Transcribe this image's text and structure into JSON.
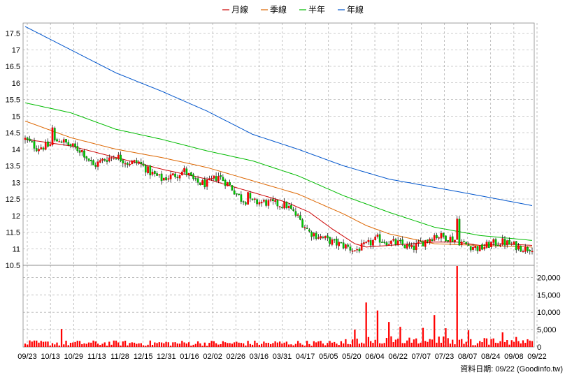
{
  "chart_data": {
    "type": "candlestick",
    "legend": [
      {
        "name": "月線",
        "color": "#cc0000"
      },
      {
        "name": "季線",
        "color": "#dd6600"
      },
      {
        "name": "半年",
        "color": "#00bb00"
      },
      {
        "name": "年線",
        "color": "#0055cc"
      }
    ],
    "price_axis": {
      "ylim": [
        10.5,
        17.7
      ],
      "ticks": [
        10.5,
        11,
        11.5,
        12,
        12.5,
        13,
        13.5,
        14,
        14.5,
        15,
        15.5,
        16,
        16.5,
        17,
        17.5
      ]
    },
    "volume_axis": {
      "ylim": [
        0,
        23000
      ],
      "ticks": [
        "0",
        "5,000",
        "10,000",
        "15,000",
        "20,000"
      ],
      "tick_values": [
        0,
        5000,
        10000,
        15000,
        20000
      ]
    },
    "x_labels": [
      "09/23",
      "10/13",
      "10/29",
      "11/13",
      "11/28",
      "12/15",
      "12/31",
      "01/16",
      "02/02",
      "02/26",
      "03/16",
      "03/31",
      "04/17",
      "05/05",
      "05/20",
      "06/04",
      "06/22",
      "07/07",
      "07/23",
      "08/07",
      "08/24",
      "09/08",
      "09/22"
    ],
    "grid": true,
    "source_note": "資料日期: 09/22 (Goodinfo.tw)",
    "price_anchors": [
      [
        0,
        14.3
      ],
      [
        5,
        14.05
      ],
      [
        10,
        14.1
      ],
      [
        15,
        14.3
      ],
      [
        20,
        14.1
      ],
      [
        25,
        13.95
      ],
      [
        30,
        13.5
      ],
      [
        35,
        13.7
      ],
      [
        40,
        13.8
      ],
      [
        45,
        13.6
      ],
      [
        50,
        13.6
      ],
      [
        55,
        13.3
      ],
      [
        60,
        13.1
      ],
      [
        65,
        13.2
      ],
      [
        70,
        13.35
      ],
      [
        75,
        13.0
      ],
      [
        80,
        12.95
      ],
      [
        85,
        13.2
      ],
      [
        90,
        12.9
      ],
      [
        95,
        12.5
      ],
      [
        100,
        12.4
      ],
      [
        105,
        12.4
      ],
      [
        110,
        12.35
      ],
      [
        115,
        12.3
      ],
      [
        120,
        11.95
      ],
      [
        125,
        11.5
      ],
      [
        130,
        11.35
      ],
      [
        135,
        11.2
      ],
      [
        140,
        11.1
      ],
      [
        145,
        10.95
      ],
      [
        150,
        11.1
      ],
      [
        155,
        11.3
      ],
      [
        160,
        11.2
      ],
      [
        165,
        11.15
      ],
      [
        170,
        11.0
      ],
      [
        175,
        11.2
      ],
      [
        180,
        11.4
      ],
      [
        185,
        11.35
      ],
      [
        190,
        11.25
      ],
      [
        195,
        11.1
      ],
      [
        200,
        11.0
      ],
      [
        205,
        11.15
      ],
      [
        210,
        11.2
      ],
      [
        215,
        11.1
      ],
      [
        220,
        11.0
      ],
      [
        223,
        11.05
      ]
    ],
    "moving_averages": {
      "月線": [
        [
          0,
          14.3
        ],
        [
          20,
          14.1
        ],
        [
          40,
          13.75
        ],
        [
          60,
          13.4
        ],
        [
          80,
          13.1
        ],
        [
          100,
          12.7
        ],
        [
          115,
          12.4
        ],
        [
          125,
          12.1
        ],
        [
          135,
          11.6
        ],
        [
          145,
          11.15
        ],
        [
          150,
          11.05
        ],
        [
          160,
          11.1
        ],
        [
          170,
          11.15
        ],
        [
          180,
          11.2
        ],
        [
          190,
          11.2
        ],
        [
          200,
          11.1
        ],
        [
          210,
          11.15
        ],
        [
          223,
          11.1
        ]
      ],
      "季線": [
        [
          0,
          14.85
        ],
        [
          20,
          14.35
        ],
        [
          40,
          14.0
        ],
        [
          60,
          13.75
        ],
        [
          80,
          13.45
        ],
        [
          100,
          13.05
        ],
        [
          120,
          12.65
        ],
        [
          140,
          12.05
        ],
        [
          150,
          11.7
        ],
        [
          160,
          11.45
        ],
        [
          170,
          11.3
        ],
        [
          180,
          11.15
        ],
        [
          200,
          11.1
        ],
        [
          223,
          11.05
        ]
      ],
      "半年": [
        [
          0,
          15.4
        ],
        [
          20,
          15.1
        ],
        [
          40,
          14.6
        ],
        [
          60,
          14.3
        ],
        [
          80,
          13.95
        ],
        [
          100,
          13.65
        ],
        [
          120,
          13.2
        ],
        [
          140,
          12.6
        ],
        [
          160,
          12.1
        ],
        [
          180,
          11.65
        ],
        [
          200,
          11.4
        ],
        [
          223,
          11.25
        ]
      ],
      "年線": [
        [
          0,
          17.7
        ],
        [
          20,
          17.0
        ],
        [
          40,
          16.3
        ],
        [
          60,
          15.75
        ],
        [
          80,
          15.15
        ],
        [
          100,
          14.45
        ],
        [
          120,
          14.0
        ],
        [
          140,
          13.5
        ],
        [
          160,
          13.1
        ],
        [
          180,
          12.85
        ],
        [
          200,
          12.6
        ],
        [
          223,
          12.3
        ]
      ]
    },
    "volume_spikes": [
      [
        16,
        5200
      ],
      [
        145,
        5000
      ],
      [
        150,
        12800
      ],
      [
        155,
        10500
      ],
      [
        160,
        7200
      ],
      [
        165,
        5800
      ],
      [
        175,
        5500
      ],
      [
        180,
        9200
      ],
      [
        185,
        5400
      ],
      [
        190,
        23300
      ],
      [
        195,
        4800
      ],
      [
        210,
        4200
      ]
    ]
  }
}
